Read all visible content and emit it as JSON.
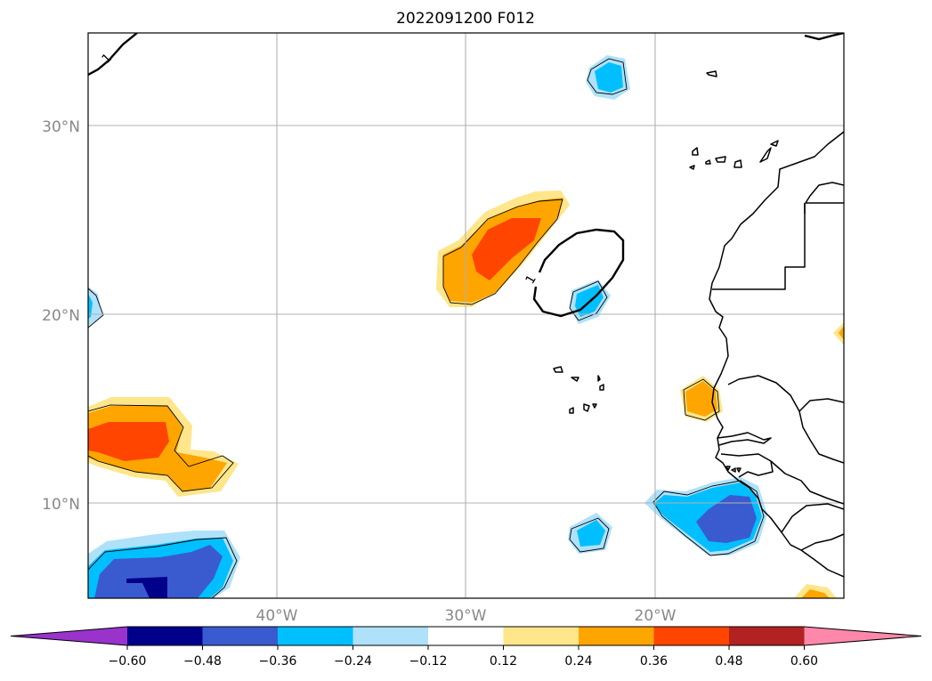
{
  "title": "2022091200 F012",
  "lat_labels": [
    "30°N",
    "20°N",
    "10°N"
  ],
  "lon_labels": [
    "40°W",
    "30°W",
    "20°W"
  ],
  "contour_label": "1",
  "colorbar": {
    "ticks": [
      "−0.60",
      "−0.48",
      "−0.36",
      "−0.24",
      "−0.12",
      "0.12",
      "0.24",
      "0.36",
      "0.48",
      "0.60"
    ],
    "under_color": "#9933cc",
    "over_color": "#ff88aa",
    "colors": [
      "#00008b",
      "#3a5bcf",
      "#00bfff",
      "#afe1fa",
      "#ffffff",
      "#ffe68a",
      "#ffa500",
      "#ff4500",
      "#b22222"
    ]
  }
}
